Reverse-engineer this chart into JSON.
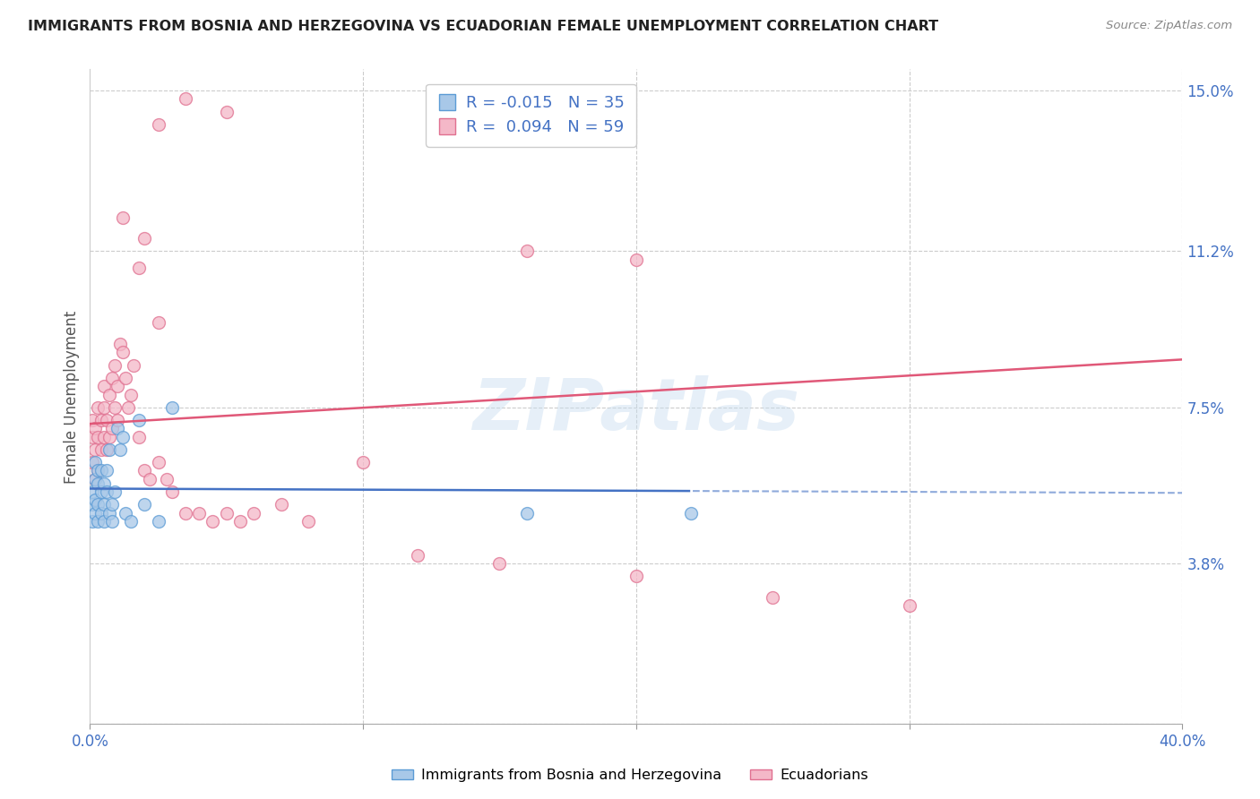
{
  "title": "IMMIGRANTS FROM BOSNIA AND HERZEGOVINA VS ECUADORIAN FEMALE UNEMPLOYMENT CORRELATION CHART",
  "source": "Source: ZipAtlas.com",
  "ylabel": "Female Unemployment",
  "yticks": [
    0.0,
    0.038,
    0.075,
    0.112,
    0.15
  ],
  "ytick_labels": [
    "",
    "3.8%",
    "7.5%",
    "11.2%",
    "15.0%"
  ],
  "xlim": [
    0.0,
    0.4
  ],
  "ylim": [
    0.0,
    0.155
  ],
  "legend_r1_label": "R = -0.015",
  "legend_n1_label": "N = 35",
  "legend_r2_label": "R =  0.094",
  "legend_n2_label": "N = 59",
  "legend_label1": "Immigrants from Bosnia and Herzegovina",
  "legend_label2": "Ecuadorians",
  "blue_fill": "#a8c8e8",
  "blue_edge": "#5b9bd5",
  "pink_fill": "#f4b8c8",
  "pink_edge": "#e07090",
  "blue_line_color": "#4472c4",
  "pink_line_color": "#e05878",
  "watermark": "ZIPatlas",
  "title_color": "#222222",
  "source_color": "#888888",
  "tick_color": "#4472c4",
  "grid_color": "#cccccc",
  "blue_points_x": [
    0.001,
    0.001,
    0.001,
    0.002,
    0.002,
    0.002,
    0.002,
    0.003,
    0.003,
    0.003,
    0.003,
    0.004,
    0.004,
    0.004,
    0.005,
    0.005,
    0.005,
    0.006,
    0.006,
    0.007,
    0.007,
    0.008,
    0.008,
    0.009,
    0.01,
    0.011,
    0.012,
    0.013,
    0.015,
    0.018,
    0.02,
    0.025,
    0.03,
    0.16,
    0.22
  ],
  "blue_points_y": [
    0.048,
    0.052,
    0.055,
    0.05,
    0.053,
    0.058,
    0.062,
    0.048,
    0.052,
    0.057,
    0.06,
    0.05,
    0.055,
    0.06,
    0.048,
    0.052,
    0.057,
    0.055,
    0.06,
    0.05,
    0.065,
    0.048,
    0.052,
    0.055,
    0.07,
    0.065,
    0.068,
    0.05,
    0.048,
    0.072,
    0.052,
    0.048,
    0.075,
    0.05,
    0.05
  ],
  "pink_points_x": [
    0.001,
    0.001,
    0.001,
    0.002,
    0.002,
    0.002,
    0.003,
    0.003,
    0.003,
    0.004,
    0.004,
    0.005,
    0.005,
    0.005,
    0.006,
    0.006,
    0.007,
    0.007,
    0.008,
    0.008,
    0.009,
    0.009,
    0.01,
    0.01,
    0.011,
    0.012,
    0.013,
    0.014,
    0.015,
    0.016,
    0.018,
    0.02,
    0.022,
    0.025,
    0.028,
    0.03,
    0.035,
    0.04,
    0.045,
    0.05,
    0.055,
    0.06,
    0.07,
    0.08,
    0.1,
    0.12,
    0.15,
    0.2,
    0.25,
    0.3,
    0.012,
    0.018,
    0.02,
    0.025,
    0.16,
    0.2,
    0.025,
    0.035,
    0.05
  ],
  "pink_points_y": [
    0.062,
    0.068,
    0.072,
    0.058,
    0.065,
    0.07,
    0.06,
    0.068,
    0.075,
    0.065,
    0.072,
    0.068,
    0.075,
    0.08,
    0.065,
    0.072,
    0.068,
    0.078,
    0.07,
    0.082,
    0.075,
    0.085,
    0.072,
    0.08,
    0.09,
    0.088,
    0.082,
    0.075,
    0.078,
    0.085,
    0.068,
    0.06,
    0.058,
    0.062,
    0.058,
    0.055,
    0.05,
    0.05,
    0.048,
    0.05,
    0.048,
    0.05,
    0.052,
    0.048,
    0.062,
    0.04,
    0.038,
    0.035,
    0.03,
    0.028,
    0.12,
    0.108,
    0.115,
    0.095,
    0.112,
    0.11,
    0.142,
    0.148,
    0.145
  ]
}
